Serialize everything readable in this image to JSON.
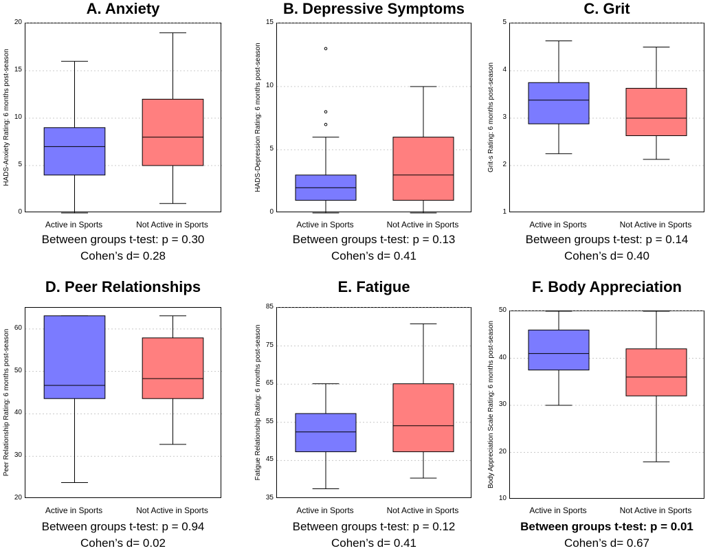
{
  "colors": {
    "active": "#7b7bff",
    "not_active": "#ff7f7f",
    "grid": "#c8c8c8"
  },
  "categories": [
    "Active in Sports",
    "Not Active in Sports"
  ],
  "chart_data": [
    {
      "type": "box",
      "title": "A. Anxiety",
      "ylabel": "HADS-Anxiety Rating: 6 months post-season",
      "ylim": [
        0,
        20
      ],
      "yticks": [
        0,
        5,
        10,
        15,
        20
      ],
      "boxes": [
        {
          "group": "Active in Sports",
          "min": 0,
          "q1": 4,
          "median": 7,
          "q3": 9,
          "max": 16,
          "outliers": []
        },
        {
          "group": "Not Active in Sports",
          "min": 1,
          "q1": 5,
          "median": 8,
          "q3": 12,
          "max": 19,
          "outliers": []
        }
      ],
      "stat_line1": "Between groups t-test: p = 0.30",
      "stat_line2": "Cohen’s d= 0.28",
      "stat_bold": false
    },
    {
      "type": "box",
      "title": "B. Depressive Symptoms",
      "ylabel": "HADS-Depression Rating: 6 months post-season",
      "ylim": [
        0,
        15
      ],
      "yticks": [
        0,
        5,
        10,
        15
      ],
      "boxes": [
        {
          "group": "Active in Sports",
          "min": 0,
          "q1": 1,
          "median": 2,
          "q3": 3,
          "max": 6,
          "outliers": [
            7,
            8,
            13
          ]
        },
        {
          "group": "Not Active in Sports",
          "min": 0,
          "q1": 1,
          "median": 3,
          "q3": 6,
          "max": 10,
          "outliers": []
        }
      ],
      "stat_line1": "Between groups t-test: p = 0.13",
      "stat_line2": "Cohen’s d= 0.41",
      "stat_bold": false
    },
    {
      "type": "box",
      "title": "C. Grit",
      "ylabel": "Grit-s Rating: 6 months post-season",
      "ylim": [
        1,
        5
      ],
      "yticks": [
        1,
        2,
        3,
        4,
        5
      ],
      "boxes": [
        {
          "group": "Active in Sports",
          "min": 2.25,
          "q1": 2.88,
          "median": 3.38,
          "q3": 3.75,
          "max": 4.63,
          "outliers": []
        },
        {
          "group": "Not Active in Sports",
          "min": 2.13,
          "q1": 2.63,
          "median": 3.0,
          "q3": 3.63,
          "max": 4.5,
          "outliers": []
        }
      ],
      "stat_line1": "Between groups t-test: p = 0.14",
      "stat_line2": "Cohen’s d= 0.40",
      "stat_bold": false
    },
    {
      "type": "box",
      "title": "D. Peer Relationships",
      "ylabel": "Peer Relationship Rating: 6 months post-season",
      "ylim": [
        20,
        65
      ],
      "yticks": [
        20,
        30,
        40,
        50,
        60
      ],
      "boxes": [
        {
          "group": "Active in Sports",
          "min": 23.8,
          "q1": 43.6,
          "median": 46.7,
          "q3": 63.1,
          "max": 63.1,
          "outliers": []
        },
        {
          "group": "Not Active in Sports",
          "min": 32.8,
          "q1": 43.6,
          "median": 48.3,
          "q3": 57.9,
          "max": 63.1,
          "outliers": []
        }
      ],
      "stat_line1": "Between groups t-test: p = 0.94",
      "stat_line2": "Cohen’s d= 0.02",
      "stat_bold": false
    },
    {
      "type": "box",
      "title": "E. Fatigue",
      "ylabel": "Fatigue Relationship Rating: 6 months post-season",
      "ylim": [
        35,
        85
      ],
      "yticks": [
        35,
        45,
        55,
        65,
        75,
        85
      ],
      "boxes": [
        {
          "group": "Active in Sports",
          "min": 37.6,
          "q1": 47.3,
          "median": 52.5,
          "q3": 57.3,
          "max": 65.1,
          "outliers": []
        },
        {
          "group": "Not Active in Sports",
          "min": 40.4,
          "q1": 47.3,
          "median": 54.1,
          "q3": 65.1,
          "max": 80.8,
          "outliers": []
        }
      ],
      "stat_line1": "Between groups t-test: p = 0.12",
      "stat_line2": "Cohen’s d= 0.41",
      "stat_bold": false
    },
    {
      "type": "box",
      "title": "F. Body Appreciation",
      "ylabel": "Body Appreciation Scale Rating: 6 months post-season",
      "ylim": [
        10,
        50
      ],
      "yticks": [
        10,
        20,
        30,
        40,
        50
      ],
      "boxes": [
        {
          "group": "Active in Sports",
          "min": 30,
          "q1": 37.5,
          "median": 41,
          "q3": 46,
          "max": 50,
          "outliers": []
        },
        {
          "group": "Not Active in Sports",
          "min": 18,
          "q1": 32,
          "median": 36,
          "q3": 42,
          "max": 50,
          "outliers": []
        }
      ],
      "stat_line1": "Between groups t-test: p = 0.01",
      "stat_line2": "Cohen’s d= 0.67",
      "stat_bold": true
    }
  ]
}
